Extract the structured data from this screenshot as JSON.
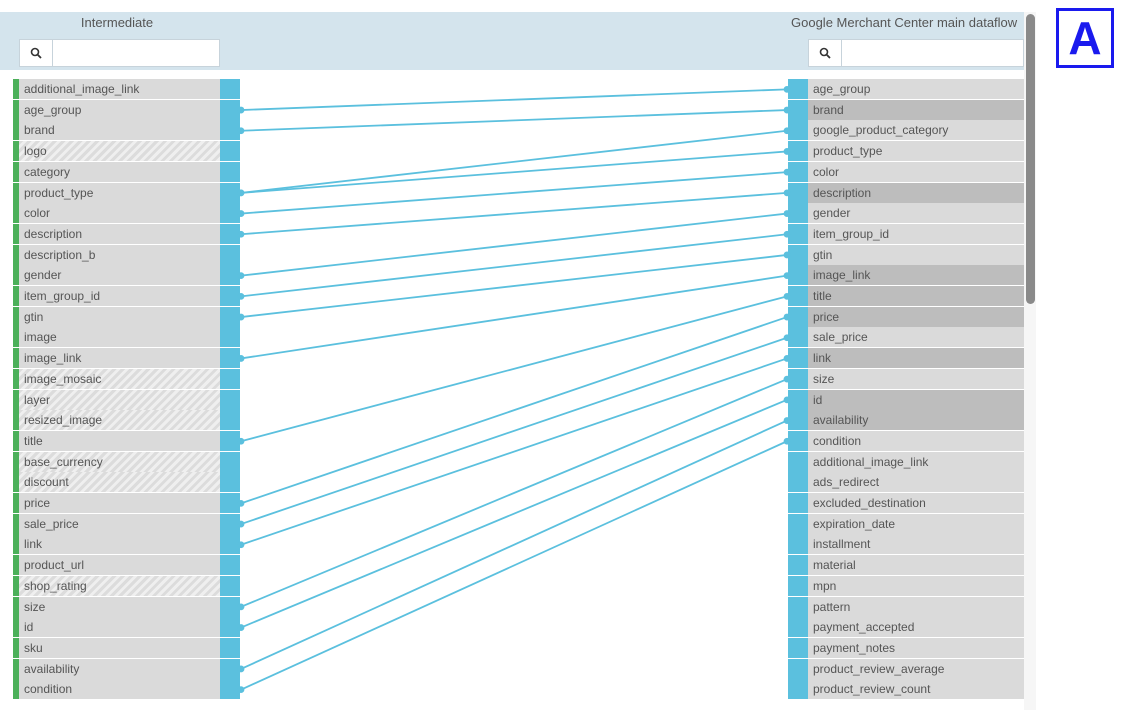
{
  "header": {
    "left_title": "Intermediate",
    "right_title": "Google Merchant Center main dataflow"
  },
  "left_search": {
    "placeholder": "",
    "icon": "search-icon"
  },
  "right_search": {
    "placeholder": "",
    "icon": "search-icon"
  },
  "badge": {
    "label": "A"
  },
  "colors": {
    "port": "#5bc0de",
    "link": "#5bc0de",
    "active_marker": "#4cb05a",
    "header_bg": "#d4e4ed",
    "badge": "#1a1aee"
  },
  "left_fields": [
    {
      "label": "additional_image_link",
      "disabled": false
    },
    {
      "label": "age_group",
      "disabled": false
    },
    {
      "label": "brand",
      "disabled": false
    },
    {
      "label": "logo",
      "disabled": true
    },
    {
      "label": "category",
      "disabled": false
    },
    {
      "label": "product_type",
      "disabled": false
    },
    {
      "label": "color",
      "disabled": false
    },
    {
      "label": "description",
      "disabled": false
    },
    {
      "label": "description_b",
      "disabled": false
    },
    {
      "label": "gender",
      "disabled": false
    },
    {
      "label": "item_group_id",
      "disabled": false
    },
    {
      "label": "gtin",
      "disabled": false
    },
    {
      "label": "image",
      "disabled": false
    },
    {
      "label": "image_link",
      "disabled": false
    },
    {
      "label": "image_mosaic",
      "disabled": true
    },
    {
      "label": "layer",
      "disabled": true
    },
    {
      "label": "resized_image",
      "disabled": true
    },
    {
      "label": "title",
      "disabled": false
    },
    {
      "label": "base_currency",
      "disabled": true
    },
    {
      "label": "discount",
      "disabled": true
    },
    {
      "label": "price",
      "disabled": false
    },
    {
      "label": "sale_price",
      "disabled": false
    },
    {
      "label": "link",
      "disabled": false
    },
    {
      "label": "product_url",
      "disabled": false
    },
    {
      "label": "shop_rating",
      "disabled": true
    },
    {
      "label": "size",
      "disabled": false
    },
    {
      "label": "id",
      "disabled": false
    },
    {
      "label": "sku",
      "disabled": false
    },
    {
      "label": "availability",
      "disabled": false
    },
    {
      "label": "condition",
      "disabled": false
    }
  ],
  "right_fields": [
    {
      "label": "age_group",
      "required": false
    },
    {
      "label": "brand",
      "required": true
    },
    {
      "label": "google_product_category",
      "required": false
    },
    {
      "label": "product_type",
      "required": false
    },
    {
      "label": "color",
      "required": false
    },
    {
      "label": "description",
      "required": true
    },
    {
      "label": "gender",
      "required": false
    },
    {
      "label": "item_group_id",
      "required": false
    },
    {
      "label": "gtin",
      "required": false
    },
    {
      "label": "image_link",
      "required": true
    },
    {
      "label": "title",
      "required": true
    },
    {
      "label": "price",
      "required": true
    },
    {
      "label": "sale_price",
      "required": false
    },
    {
      "label": "link",
      "required": true
    },
    {
      "label": "size",
      "required": false
    },
    {
      "label": "id",
      "required": true
    },
    {
      "label": "availability",
      "required": true
    },
    {
      "label": "condition",
      "required": false
    },
    {
      "label": "additional_image_link",
      "required": false
    },
    {
      "label": "ads_redirect",
      "required": false
    },
    {
      "label": "excluded_destination",
      "required": false
    },
    {
      "label": "expiration_date",
      "required": false
    },
    {
      "label": "installment",
      "required": false
    },
    {
      "label": "material",
      "required": false
    },
    {
      "label": "mpn",
      "required": false
    },
    {
      "label": "pattern",
      "required": false
    },
    {
      "label": "payment_accepted",
      "required": false
    },
    {
      "label": "payment_notes",
      "required": false
    },
    {
      "label": "product_review_average",
      "required": false
    },
    {
      "label": "product_review_count",
      "required": false
    }
  ],
  "mappings": [
    {
      "from": "age_group",
      "to": "age_group"
    },
    {
      "from": "brand",
      "to": "brand"
    },
    {
      "from": "product_type",
      "to": "google_product_category"
    },
    {
      "from": "product_type",
      "to": "product_type"
    },
    {
      "from": "color",
      "to": "color"
    },
    {
      "from": "description",
      "to": "description"
    },
    {
      "from": "gender",
      "to": "gender"
    },
    {
      "from": "item_group_id",
      "to": "item_group_id"
    },
    {
      "from": "gtin",
      "to": "gtin"
    },
    {
      "from": "image_link",
      "to": "image_link"
    },
    {
      "from": "title",
      "to": "title"
    },
    {
      "from": "price",
      "to": "price"
    },
    {
      "from": "sale_price",
      "to": "sale_price"
    },
    {
      "from": "link",
      "to": "link"
    },
    {
      "from": "size",
      "to": "size"
    },
    {
      "from": "id",
      "to": "id"
    },
    {
      "from": "availability",
      "to": "availability"
    },
    {
      "from": "condition",
      "to": "condition"
    }
  ]
}
